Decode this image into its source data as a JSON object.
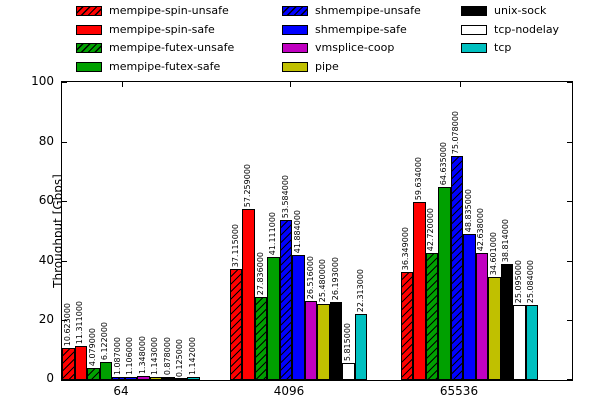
{
  "figure": {
    "background": "#ffffff",
    "axis_color": "#000000",
    "value_label_decimals": 6
  },
  "chart_data": {
    "type": "bar",
    "title": "",
    "xlabel": "",
    "ylabel": "Throughput [Gbps]",
    "ylim": [
      0,
      100
    ],
    "yticks": [
      0,
      20,
      40,
      60,
      80,
      100
    ],
    "grid": false,
    "legend_position": "top-outside-3-columns",
    "bar_value_labels_rotated": true,
    "categories": [
      "64",
      "4096",
      "65536"
    ],
    "series": [
      {
        "name": "mempipe-spin-unsafe",
        "color": "#ff0000",
        "hatch": true,
        "values": [
          10.623,
          37.115,
          36.349
        ]
      },
      {
        "name": "mempipe-spin-safe",
        "color": "#ff0000",
        "hatch": false,
        "values": [
          11.311,
          57.259,
          59.634
        ]
      },
      {
        "name": "mempipe-futex-unsafe",
        "color": "#00a000",
        "hatch": true,
        "values": [
          4.079,
          27.836,
          42.72
        ]
      },
      {
        "name": "mempipe-futex-safe",
        "color": "#00a000",
        "hatch": false,
        "values": [
          6.122,
          41.111,
          64.635
        ]
      },
      {
        "name": "shmempipe-unsafe",
        "color": "#0000ff",
        "hatch": true,
        "values": [
          1.087,
          53.584,
          75.078
        ]
      },
      {
        "name": "shmempipe-safe",
        "color": "#0000ff",
        "hatch": false,
        "values": [
          1.106,
          41.884,
          48.835
        ]
      },
      {
        "name": "vmsplice-coop",
        "color": "#c000c0",
        "hatch": false,
        "values": [
          1.348,
          26.516,
          42.638
        ]
      },
      {
        "name": "pipe",
        "color": "#c0c000",
        "hatch": false,
        "values": [
          1.143,
          25.48,
          34.601
        ]
      },
      {
        "name": "unix-sock",
        "color": "#000000",
        "hatch": false,
        "values": [
          0.878,
          26.193,
          38.814
        ]
      },
      {
        "name": "tcp-nodelay",
        "color": "#ffffff",
        "hatch": false,
        "values": [
          0.125,
          5.815,
          25.095
        ]
      },
      {
        "name": "tcp",
        "color": "#00c0c0",
        "hatch": false,
        "values": [
          1.142,
          22.313,
          25.084
        ]
      }
    ]
  }
}
